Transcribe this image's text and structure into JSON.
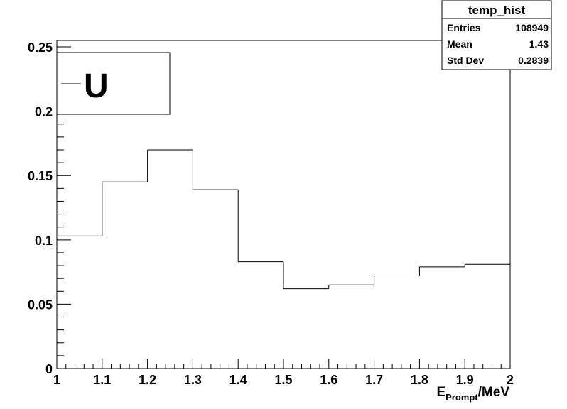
{
  "chart_data": {
    "type": "histogram",
    "x_bin_edges": [
      1.0,
      1.1,
      1.2,
      1.3,
      1.4,
      1.5,
      1.6,
      1.7,
      1.8,
      1.9,
      2.0
    ],
    "values": [
      0.103,
      0.145,
      0.17,
      0.139,
      0.083,
      0.062,
      0.065,
      0.072,
      0.079,
      0.081
    ],
    "xlim": [
      1.0,
      2.0
    ],
    "ylim": [
      0,
      0.255
    ],
    "x_ticks": [
      "1",
      "1.1",
      "1.2",
      "1.3",
      "1.4",
      "1.5",
      "1.6",
      "1.7",
      "1.8",
      "1.9",
      "2"
    ],
    "y_ticks": [
      "0",
      "0.05",
      "0.1",
      "0.15",
      "0.2",
      "0.25"
    ],
    "x_tick_values": [
      1.0,
      1.1,
      1.2,
      1.3,
      1.4,
      1.5,
      1.6,
      1.7,
      1.8,
      1.9,
      2.0
    ],
    "y_tick_values": [
      0,
      0.05,
      0.1,
      0.15,
      0.2,
      0.25
    ],
    "xlabel": {
      "main": "E",
      "subscript": "Prompt",
      "suffix": "/MeV"
    },
    "ylabel": "",
    "legend": {
      "position": "top-left",
      "entries": [
        {
          "label": "U"
        }
      ]
    },
    "stats_box": {
      "title": "temp_hist",
      "rows": [
        {
          "label": "Entries",
          "value": "108949"
        },
        {
          "label": "Mean",
          "value": "1.43"
        },
        {
          "label": "Std Dev",
          "value": "0.2839"
        }
      ]
    },
    "grid": false,
    "line_color": "#000000"
  }
}
